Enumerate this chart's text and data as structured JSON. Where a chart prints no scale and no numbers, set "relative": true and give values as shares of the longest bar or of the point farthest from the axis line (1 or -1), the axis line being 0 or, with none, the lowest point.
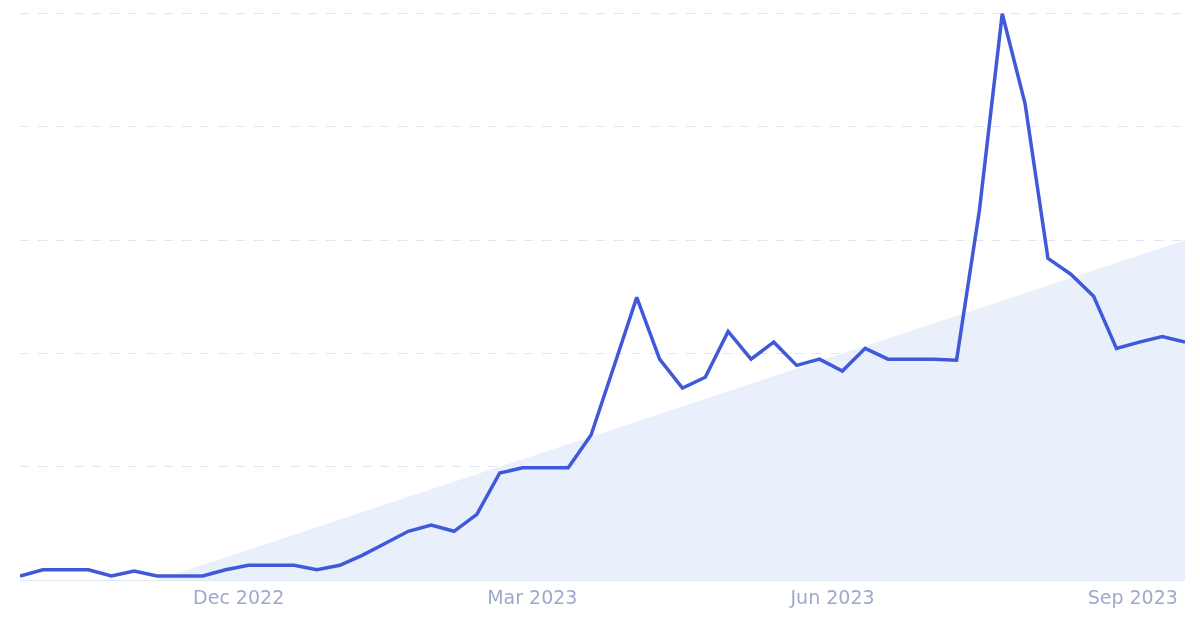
{
  "chart_data": {
    "type": "line",
    "relative": true,
    "grid": "y",
    "x": [
      "2022-09-25",
      "2022-10-02",
      "2022-10-09",
      "2022-10-16",
      "2022-10-23",
      "2022-10-30",
      "2022-11-06",
      "2022-11-13",
      "2022-11-20",
      "2022-11-27",
      "2022-12-04",
      "2022-12-11",
      "2022-12-18",
      "2022-12-25",
      "2023-01-01",
      "2023-01-08",
      "2023-01-15",
      "2023-01-22",
      "2023-01-29",
      "2023-02-05",
      "2023-02-12",
      "2023-02-19",
      "2023-02-26",
      "2023-03-05",
      "2023-03-12",
      "2023-03-19",
      "2023-03-26",
      "2023-04-02",
      "2023-04-09",
      "2023-04-16",
      "2023-04-23",
      "2023-04-30",
      "2023-05-07",
      "2023-05-14",
      "2023-05-21",
      "2023-05-28",
      "2023-06-04",
      "2023-06-11",
      "2023-06-18",
      "2023-06-25",
      "2023-07-02",
      "2023-07-09",
      "2023-07-16",
      "2023-07-23",
      "2023-07-30",
      "2023-08-06",
      "2023-08-13",
      "2023-08-20",
      "2023-08-27",
      "2023-09-03",
      "2023-09-10",
      "2023-09-17"
    ],
    "xlim": [
      "2022-09-25",
      "2023-09-17"
    ],
    "xticks": [
      {
        "value": "2022-12-01",
        "label": "Dec 2022"
      },
      {
        "value": "2023-03-01",
        "label": "Mar 2023"
      },
      {
        "value": "2023-06-01",
        "label": "Jun 2023"
      },
      {
        "value": "2023-09-01",
        "label": "Sep 2023"
      }
    ],
    "series": [
      {
        "type": "area",
        "color": "#e9f0fb",
        "x": [
          "2022-11-06",
          "2023-09-17"
        ],
        "values": [
          0,
          0.6
        ]
      },
      {
        "color": "#4059d9",
        "values": [
          0.007,
          0.018,
          0.018,
          0.018,
          0.007,
          0.016,
          0.007,
          0.007,
          0.007,
          0.018,
          0.026,
          0.026,
          0.026,
          0.018,
          0.026,
          0.044,
          0.065,
          0.086,
          0.097,
          0.086,
          0.116,
          0.189,
          0.198,
          0.198,
          0.198,
          0.256,
          0.377,
          0.499,
          0.39,
          0.339,
          0.358,
          0.439,
          0.39,
          0.42,
          0.379,
          0.39,
          0.369,
          0.409,
          0.39,
          0.39,
          0.39,
          0.388,
          0.653,
          1,
          0.841,
          0.568,
          0.54,
          0.501,
          0.409,
          0.42,
          0.43,
          0.42
        ]
      }
    ]
  }
}
